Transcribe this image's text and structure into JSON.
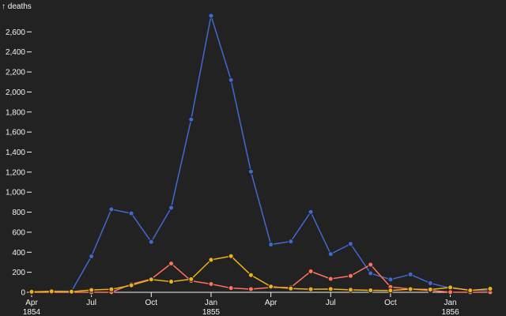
{
  "chart_data": {
    "type": "line",
    "ylabel": "↑ deaths",
    "ylim": [
      0,
      2800
    ],
    "y_ticks": [
      0,
      200,
      400,
      600,
      800,
      1000,
      1200,
      1400,
      1600,
      1800,
      2000,
      2200,
      2400,
      2600
    ],
    "y_tick_labels": [
      "0",
      "200",
      "400",
      "600",
      "800",
      "1,000",
      "1,200",
      "1,400",
      "1,600",
      "1,800",
      "2,000",
      "2,200",
      "2,400",
      "2,600"
    ],
    "x_ticks": [
      {
        "date": "1854-04",
        "month": "Apr",
        "year": "1854"
      },
      {
        "date": "1854-07",
        "month": "Jul",
        "year": ""
      },
      {
        "date": "1854-10",
        "month": "Oct",
        "year": ""
      },
      {
        "date": "1855-01",
        "month": "Jan",
        "year": "1855"
      },
      {
        "date": "1855-04",
        "month": "Apr",
        "year": ""
      },
      {
        "date": "1855-07",
        "month": "Jul",
        "year": ""
      },
      {
        "date": "1855-10",
        "month": "Oct",
        "year": ""
      },
      {
        "date": "1856-01",
        "month": "Jan",
        "year": "1856"
      }
    ],
    "x": [
      "1854-04",
      "1854-05",
      "1854-06",
      "1854-07",
      "1854-08",
      "1854-09",
      "1854-10",
      "1854-11",
      "1854-12",
      "1855-01",
      "1855-02",
      "1855-03",
      "1855-04",
      "1855-05",
      "1855-06",
      "1855-07",
      "1855-08",
      "1855-09",
      "1855-10",
      "1855-11",
      "1855-12",
      "1856-01",
      "1856-02",
      "1856-03"
    ],
    "series": [
      {
        "color": "#4269d0",
        "values": [
          1,
          12,
          11,
          359,
          828,
          788,
          503,
          844,
          1725,
          2761,
          2120,
          1205,
          477,
          508,
          802,
          382,
          483,
          189,
          128,
          178,
          91,
          42,
          24,
          15
        ]
      },
      {
        "color": "#ff725c",
        "values": [
          0,
          0,
          0,
          0,
          1,
          81,
          132,
          287,
          114,
          83,
          42,
          32,
          48,
          49,
          209,
          134,
          164,
          276,
          53,
          33,
          18,
          2,
          0,
          0
        ]
      },
      {
        "color": "#efb118",
        "values": [
          5,
          9,
          6,
          23,
          30,
          70,
          128,
          106,
          131,
          324,
          361,
          172,
          57,
          37,
          31,
          33,
          25,
          20,
          18,
          32,
          28,
          48,
          19,
          35
        ]
      }
    ]
  }
}
